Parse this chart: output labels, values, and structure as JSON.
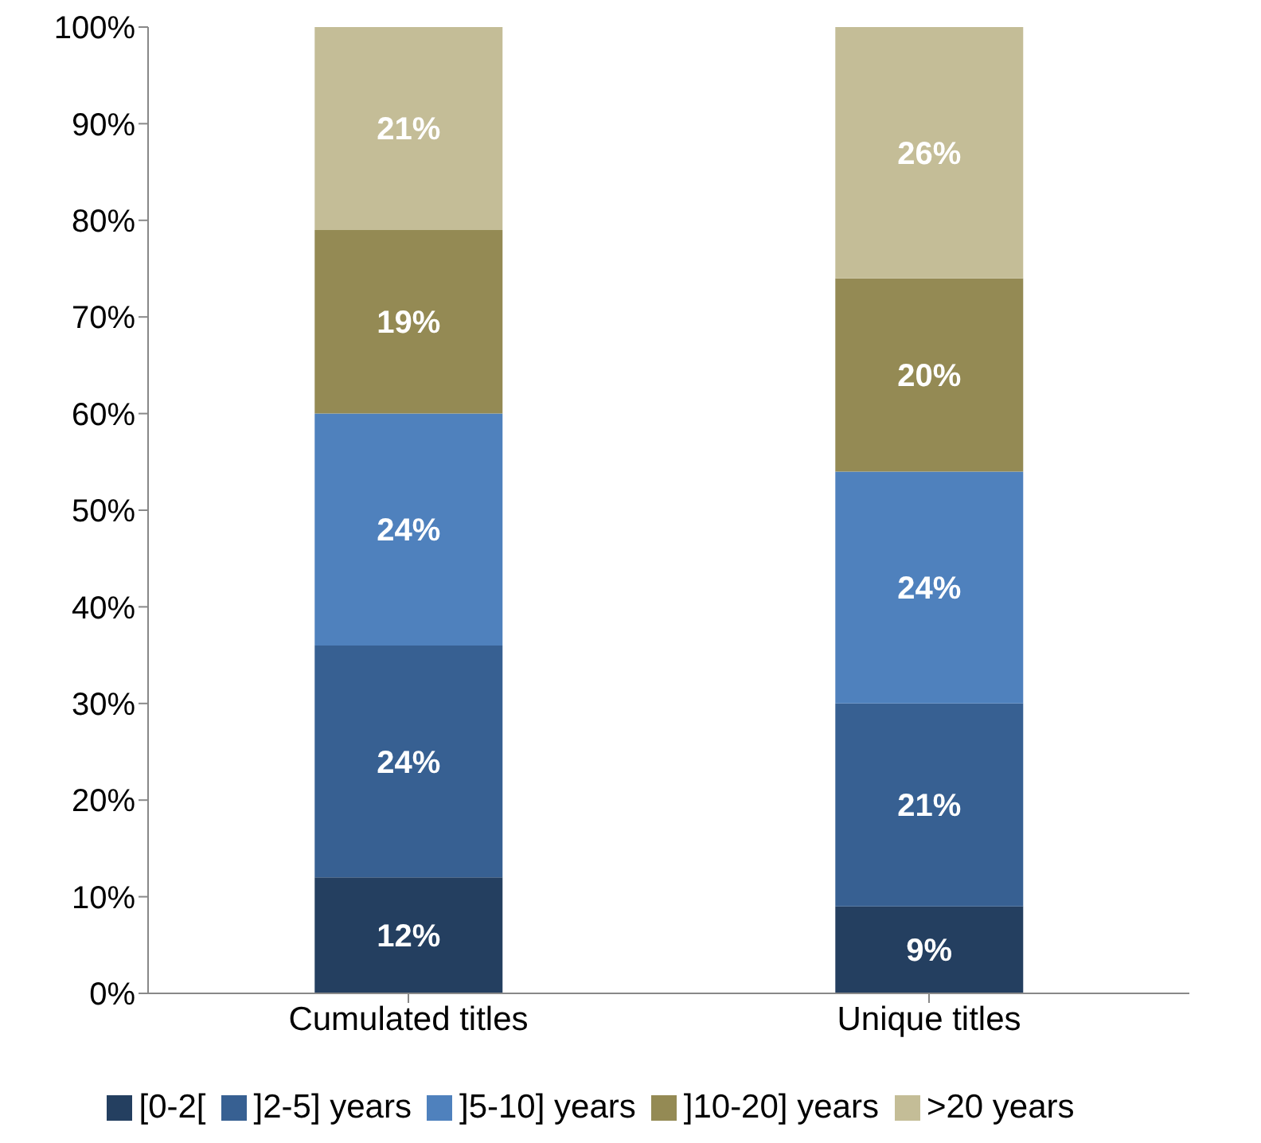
{
  "chart_data": {
    "type": "bar",
    "stacked": true,
    "categories": [
      "Cumulated titles",
      "Unique titles"
    ],
    "series": [
      {
        "name": "[0-2[",
        "color": "#243f60",
        "values": [
          12,
          9
        ],
        "value_labels": [
          "12%",
          "9%"
        ]
      },
      {
        "name": "]2-5] years",
        "color": "#376092",
        "values": [
          24,
          21
        ],
        "value_labels": [
          "24%",
          "21%"
        ]
      },
      {
        "name": "]5-10] years",
        "color": "#4f81bd",
        "values": [
          24,
          24
        ],
        "value_labels": [
          "24%",
          "24%"
        ]
      },
      {
        "name": "]10-20] years",
        "color": "#948a54",
        "values": [
          19,
          20
        ],
        "value_labels": [
          "19%",
          "20%"
        ]
      },
      {
        "name": ">20 years",
        "color": "#c4bd97",
        "values": [
          21,
          26
        ],
        "value_labels": [
          "21%",
          "26%"
        ]
      }
    ],
    "ylim": [
      0,
      100
    ],
    "yticks": [
      {
        "value": 0,
        "label": "0%"
      },
      {
        "value": 10,
        "label": "10%"
      },
      {
        "value": 20,
        "label": "20%"
      },
      {
        "value": 30,
        "label": "30%"
      },
      {
        "value": 40,
        "label": "40%"
      },
      {
        "value": 50,
        "label": "50%"
      },
      {
        "value": 60,
        "label": "60%"
      },
      {
        "value": 70,
        "label": "70%"
      },
      {
        "value": 80,
        "label": "80%"
      },
      {
        "value": 90,
        "label": "90%"
      },
      {
        "value": 100,
        "label": "100%"
      }
    ],
    "grid": false,
    "legend": "bottom"
  }
}
